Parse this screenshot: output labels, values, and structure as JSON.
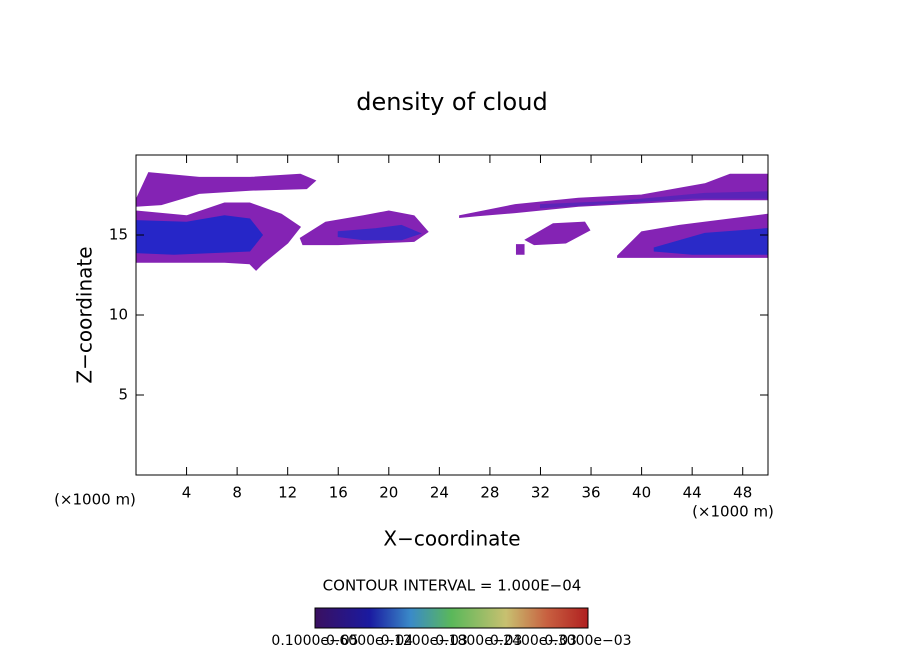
{
  "chart_data": {
    "type": "contour",
    "title": "density of cloud",
    "x_label": "X−coordinate",
    "y_label": "Z−coordinate",
    "x_unit_label": "(×1000 m)",
    "x_unit_label_right": "(×1000 m)",
    "contour_interval": "CONTOUR INTERVAL = 1.000E−04",
    "xlim": [
      0,
      50
    ],
    "ylim": [
      0,
      20
    ],
    "xticks": [
      4,
      8,
      12,
      16,
      20,
      24,
      28,
      32,
      36,
      40,
      44,
      48
    ],
    "yticks": [
      5,
      10,
      15
    ],
    "regions": [
      {
        "color": "#8423b4",
        "x": [
          0,
          1,
          5,
          9,
          13,
          14.2,
          13.5,
          9,
          5,
          2,
          0
        ],
        "z": [
          17.2,
          18.9,
          18.6,
          18.6,
          18.8,
          18.4,
          17.9,
          17.8,
          17.6,
          16.9,
          16.8
        ]
      },
      {
        "color": "#8423b4",
        "x": [
          0,
          4,
          7,
          9,
          11.5,
          13,
          12,
          10,
          9.5,
          9,
          7,
          4,
          0
        ],
        "z": [
          16.5,
          16.2,
          17.0,
          17.0,
          16.3,
          15.5,
          14.5,
          13.2,
          12.8,
          13.2,
          13.3,
          13.3,
          13.3
        ]
      },
      {
        "color": "#2626c8",
        "x": [
          0,
          4,
          7,
          9,
          10,
          9,
          6,
          3,
          0
        ],
        "z": [
          15.9,
          15.8,
          16.2,
          16.0,
          15.0,
          14.0,
          13.9,
          13.8,
          13.9
        ]
      },
      {
        "color": "#8423b4",
        "x": [
          13,
          15,
          18,
          20,
          22,
          23.1,
          22,
          19,
          16,
          13.2
        ],
        "z": [
          14.8,
          15.8,
          16.2,
          16.5,
          16.2,
          15.2,
          14.6,
          14.5,
          14.4,
          14.4
        ]
      },
      {
        "color": "#3a28c4",
        "x": [
          16,
          19,
          21,
          22.5,
          21,
          18,
          16
        ],
        "z": [
          15.2,
          15.4,
          15.6,
          15.1,
          14.7,
          14.7,
          14.9
        ]
      },
      {
        "color": "#8423b4",
        "x": [
          25.6,
          30,
          35,
          40,
          45,
          47,
          50,
          50,
          45,
          40,
          35,
          30,
          27,
          25.6
        ],
        "z": [
          16.2,
          16.9,
          17.3,
          17.5,
          18.2,
          18.8,
          18.8,
          17.2,
          17.2,
          17.0,
          16.8,
          16.4,
          16.2,
          16.1
        ]
      },
      {
        "color": "#5a24b8",
        "x": [
          32,
          38,
          45,
          50,
          50,
          44,
          38,
          32
        ],
        "z": [
          16.9,
          17.1,
          17.6,
          17.7,
          17.3,
          17.3,
          17.0,
          16.7
        ]
      },
      {
        "color": "#8423b4",
        "x": [
          30.8,
          33,
          35.5,
          35.9,
          34,
          31.5
        ],
        "z": [
          14.7,
          15.7,
          15.8,
          15.3,
          14.5,
          14.4
        ]
      },
      {
        "color": "#8423b4",
        "x": [
          38.1,
          40,
          43,
          47,
          50,
          50,
          44,
          38.1
        ],
        "z": [
          13.7,
          15.2,
          15.6,
          16.0,
          16.3,
          13.6,
          13.6,
          13.6
        ]
      },
      {
        "color": "#2a2ac8",
        "x": [
          41,
          45,
          50,
          50,
          44,
          41
        ],
        "z": [
          14.2,
          15.1,
          15.4,
          13.8,
          13.8,
          14.0
        ]
      },
      {
        "color": "#8423b4",
        "x": [
          30.1,
          30.7,
          30.7,
          30.1
        ],
        "z": [
          13.8,
          13.8,
          14.4,
          14.4
        ]
      }
    ],
    "colorbar_labels": [
      "0.1000e−05",
      "0.6000e−04",
      "0.1200e−03",
      "0.1800e−03",
      "0.2400e−03",
      "0.3000e−03"
    ]
  }
}
